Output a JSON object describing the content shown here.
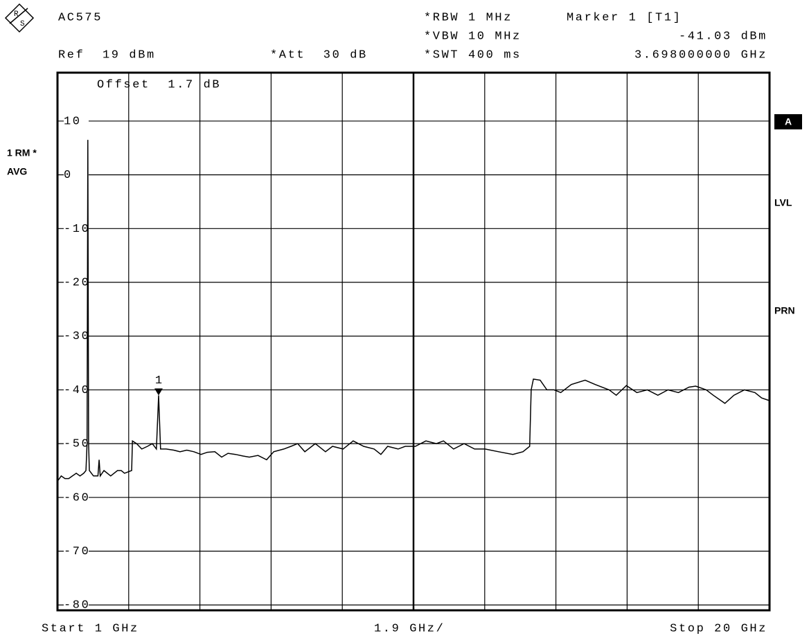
{
  "chart_data": {
    "type": "line",
    "instrument": "AC575",
    "ref_level": "Ref  19 dBm",
    "attenuation": "*Att  30 dB",
    "rbw": "*RBW 1 MHz",
    "vbw": "*VBW 10 MHz",
    "sweep_time": "*SWT 400 ms",
    "offset": "Offset  1.7 dB",
    "trace_mode": [
      "1 RM *",
      "AVG"
    ],
    "side_labels": [
      "A",
      "LVL",
      "PRN"
    ],
    "x_start": "Start 1 GHz",
    "x_span_per_div": "1.9 GHz/",
    "x_stop": "Stop 20 GHz",
    "marker": {
      "name": "Marker 1 [T1]",
      "label": "1",
      "x": 3.698,
      "y": -41.03,
      "x_label": "3.698000000 GHz",
      "y_label": "-41.03 dBm"
    },
    "xlim": [
      1,
      20
    ],
    "ylim": [
      -81,
      19
    ],
    "xticks": [
      2.9,
      4.8,
      6.7,
      8.6,
      10.5,
      12.4,
      14.3,
      16.2,
      18.1
    ],
    "yticks": [
      10,
      0,
      -10,
      -20,
      -30,
      -40,
      -50,
      -60,
      -70,
      -80
    ],
    "grid": true,
    "color": "#000000",
    "x": [
      1.0,
      1.1,
      1.2,
      1.3,
      1.4,
      1.5,
      1.6,
      1.7,
      1.76,
      1.79,
      1.81,
      1.83,
      1.85,
      1.96,
      2.08,
      2.11,
      2.14,
      2.24,
      2.42,
      2.6,
      2.7,
      2.79,
      2.98,
      3.0,
      3.11,
      3.25,
      3.4,
      3.53,
      3.64,
      3.698,
      3.75,
      3.9,
      4.1,
      4.27,
      4.45,
      4.64,
      4.83,
      5.0,
      5.2,
      5.38,
      5.55,
      5.75,
      5.95,
      6.12,
      6.35,
      6.58,
      6.77,
      7.04,
      7.23,
      7.41,
      7.6,
      7.88,
      8.15,
      8.34,
      8.62,
      8.89,
      9.17,
      9.45,
      9.63,
      9.81,
      10.09,
      10.28,
      10.55,
      10.83,
      11.11,
      11.3,
      11.57,
      11.85,
      12.13,
      12.41,
      12.77,
      13.15,
      13.42,
      13.6,
      13.64,
      13.7,
      13.88,
      14.06,
      14.25,
      14.43,
      14.71,
      15.08,
      15.35,
      15.72,
      15.91,
      16.18,
      16.46,
      16.74,
      17.02,
      17.29,
      17.57,
      17.85,
      18.03,
      18.31,
      18.5,
      18.81,
      19.05,
      19.33,
      19.61,
      19.79,
      20.0
    ],
    "values": [
      -57,
      -56,
      -56.5,
      -56.5,
      -56,
      -55.5,
      -56,
      -55.5,
      -55,
      -50,
      6.5,
      -50,
      -55,
      -56,
      -56,
      -53,
      -56,
      -55,
      -56,
      -55,
      -55,
      -55.5,
      -55,
      -49.5,
      -50,
      -51,
      -50.5,
      -50,
      -51,
      -41.03,
      -51,
      -51,
      -51.2,
      -51.5,
      -51.2,
      -51.5,
      -52,
      -51.6,
      -51.5,
      -52.5,
      -51.8,
      -52,
      -52.3,
      -52.5,
      -52.2,
      -53,
      -51.5,
      -51,
      -50.5,
      -50,
      -51.5,
      -50,
      -51.5,
      -50.5,
      -51,
      -49.5,
      -50.5,
      -51,
      -52,
      -50.5,
      -51,
      -50.5,
      -50.5,
      -49.5,
      -50,
      -49.5,
      -51,
      -50,
      -51,
      -51,
      -51.5,
      -52,
      -51.5,
      -50.5,
      -40,
      -38,
      -38.2,
      -40,
      -40,
      -40.5,
      -39,
      -38.2,
      -39,
      -40,
      -41,
      -39.2,
      -40.5,
      -40,
      -41,
      -40,
      -40.5,
      -39.5,
      -39.3,
      -40,
      -41,
      -42.5,
      -41,
      -40,
      -40.5,
      -41.5,
      -42
    ]
  }
}
